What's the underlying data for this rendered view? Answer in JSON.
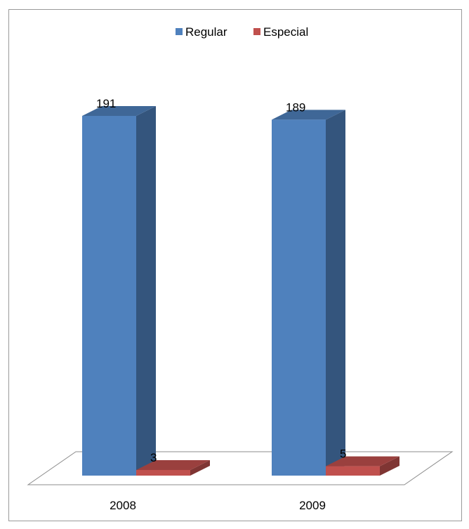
{
  "chart_data": {
    "type": "bar",
    "subtype": "3d-clustered-column",
    "categories": [
      "2008",
      "2009"
    ],
    "series": [
      {
        "name": "Regular",
        "values": [
          191,
          189
        ],
        "color": "#4F81BD"
      },
      {
        "name": "Especial",
        "values": [
          3,
          5
        ],
        "color": "#C0504D"
      }
    ],
    "data_labels": [
      [
        "191",
        "189"
      ],
      [
        "3",
        "5"
      ]
    ],
    "legend_position": "top",
    "title": "",
    "xlabel": "",
    "ylabel": "",
    "ylim": [
      0,
      191
    ],
    "grid": false,
    "axis_visible": false
  }
}
